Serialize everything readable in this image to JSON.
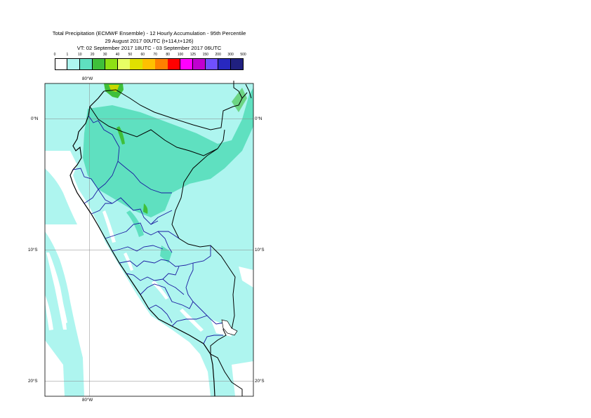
{
  "header": {
    "line1": "Total Precipitation (ECMWF Ensemble) - 12 Hourly Accumulation - 95th Percentile",
    "line2": "29 August 2017 00UTC (t+114,t+126)",
    "line3": "VT: 02 September 2017 18UTC - 03 September 2017 06UTC"
  },
  "legend": {
    "labels": [
      "0",
      "1",
      "10",
      "20",
      "30",
      "40",
      "50",
      "60",
      "70",
      "80",
      "100",
      "125",
      "150",
      "200",
      "300",
      "500"
    ],
    "colors": [
      "#ffffff",
      "#aef5ef",
      "#5fe0c0",
      "#3fbf3a",
      "#8ee014",
      "#e8ff64",
      "#e0e000",
      "#ffc000",
      "#ff8000",
      "#ff0000",
      "#ff00ff",
      "#c000d0",
      "#7050ff",
      "#2828c0",
      "#202080"
    ]
  },
  "map": {
    "top_labels": [
      "80°W"
    ],
    "bottom_labels": [
      "80°W"
    ],
    "left_labels": [
      "0°N",
      "10°S",
      "20°S"
    ],
    "right_labels": [
      "0°N",
      "10°S",
      "20°S"
    ],
    "colors": {
      "light": "#aef5ef",
      "medium": "#5fe0c0",
      "green": "#3fbf3a",
      "yellow": "#c8d800",
      "country_border": "#000000",
      "region_border": "#1a1aa0"
    }
  }
}
